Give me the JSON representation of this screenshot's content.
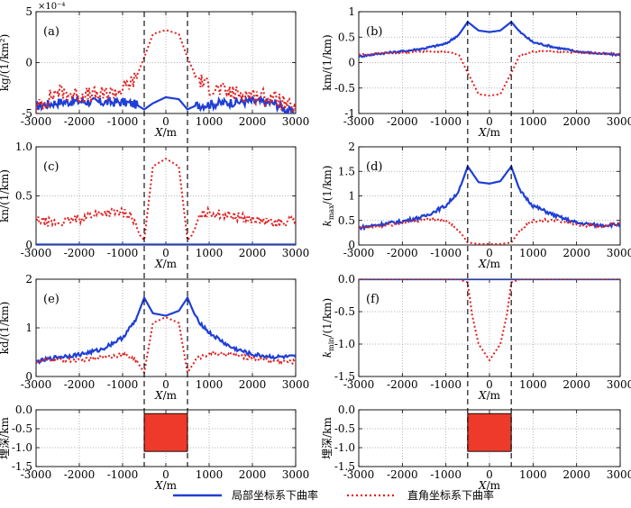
{
  "figure": {
    "x_range": [
      -3000,
      3000
    ],
    "x_ticks": [
      -3000,
      -2000,
      -1000,
      0,
      1000,
      2000,
      3000
    ],
    "xlabel": "X/m",
    "body_edges_x": [
      -500,
      500
    ],
    "legend": [
      {
        "label": "局部坐标系下曲率",
        "color": "#1f3fd6",
        "style": "solid"
      },
      {
        "label": "直角坐标系下曲率",
        "color": "#e02020",
        "style": "dotted"
      }
    ]
  },
  "chart_data": [
    {
      "id": "a",
      "panel_label": "(a)",
      "type": "line",
      "ylabel": "kg/(1/km²)",
      "scale_note": "×10⁻⁴",
      "ylim": [
        -5,
        5
      ],
      "yticks": [
        -5,
        0,
        5
      ],
      "ytick_labels": [
        "-5",
        "0",
        "5"
      ],
      "x": [
        -3000,
        -2500,
        -2000,
        -1500,
        -1000,
        -700,
        -500,
        -300,
        0,
        300,
        500,
        700,
        1000,
        1500,
        2000,
        2500,
        3000
      ],
      "series": [
        {
          "name": "局部坐标系下曲率",
          "values": [
            -4.3,
            -3.9,
            -3.8,
            -3.9,
            -3.9,
            -4.1,
            -4.6,
            -4.0,
            -3.4,
            -3.6,
            -4.6,
            -4.2,
            -4.1,
            -3.9,
            -3.8,
            -4.0,
            -5.1
          ]
        },
        {
          "name": "直角坐标系下曲率",
          "values": [
            -4.5,
            -2.8,
            -3.2,
            -3.2,
            -2.6,
            -1.6,
            0.5,
            2.8,
            3.2,
            2.8,
            0.5,
            -1.4,
            -2.4,
            -3.0,
            -3.2,
            -3.5,
            -4.7
          ]
        }
      ]
    },
    {
      "id": "b",
      "panel_label": "(b)",
      "type": "line",
      "ylabel": "km/(1/km)",
      "ylim": [
        -1,
        1
      ],
      "yticks": [
        -1,
        -0.5,
        0,
        0.5,
        1
      ],
      "ytick_labels": [
        "-1",
        "-0.5",
        "0",
        "0.5",
        "1"
      ],
      "x": [
        -3000,
        -2500,
        -2000,
        -1500,
        -1000,
        -700,
        -500,
        -250,
        0,
        250,
        500,
        700,
        1000,
        1500,
        2000,
        2500,
        3000
      ],
      "series": [
        {
          "name": "局部坐标系下曲率",
          "values": [
            0.12,
            0.18,
            0.22,
            0.28,
            0.37,
            0.55,
            0.8,
            0.63,
            0.6,
            0.63,
            0.8,
            0.6,
            0.4,
            0.3,
            0.22,
            0.18,
            0.15
          ]
        },
        {
          "name": "直角坐标系下曲率",
          "values": [
            0.15,
            0.18,
            0.2,
            0.22,
            0.22,
            0.15,
            -0.2,
            -0.62,
            -0.65,
            -0.62,
            -0.2,
            0.15,
            0.22,
            0.22,
            0.2,
            0.18,
            0.16
          ]
        }
      ]
    },
    {
      "id": "c",
      "panel_label": "(c)",
      "type": "line",
      "ylabel": "kn/(1/km)",
      "ylim": [
        0,
        1
      ],
      "yticks": [
        0,
        0.5,
        1
      ],
      "ytick_labels": [
        "0",
        "0.5",
        "1.0"
      ],
      "x": [
        -3000,
        -2500,
        -2000,
        -1500,
        -1000,
        -800,
        -600,
        -500,
        -300,
        0,
        300,
        500,
        600,
        800,
        1000,
        1500,
        2000,
        2500,
        3000
      ],
      "series": [
        {
          "name": "局部坐标系下曲率",
          "values": [
            0.005,
            0.005,
            0.005,
            0.005,
            0.005,
            0.005,
            0.005,
            0.005,
            0.005,
            0.005,
            0.005,
            0.005,
            0.005,
            0.005,
            0.005,
            0.005,
            0.005,
            0.005,
            0.005
          ]
        },
        {
          "name": "直角坐标系下曲率",
          "values": [
            0.25,
            0.22,
            0.27,
            0.33,
            0.33,
            0.3,
            0.1,
            0.05,
            0.8,
            0.88,
            0.8,
            0.05,
            0.1,
            0.3,
            0.33,
            0.3,
            0.26,
            0.22,
            0.25
          ]
        }
      ]
    },
    {
      "id": "d",
      "panel_label": "(d)",
      "type": "line",
      "ylabel": "k_max/(1/km)",
      "ylim": [
        0,
        2
      ],
      "yticks": [
        0,
        0.5,
        1,
        1.5,
        2
      ],
      "ytick_labels": [
        "0",
        "0.5",
        "1",
        "1.5",
        "2"
      ],
      "x": [
        -3000,
        -2500,
        -2000,
        -1500,
        -1000,
        -700,
        -500,
        -250,
        0,
        250,
        500,
        700,
        1000,
        1500,
        2000,
        2500,
        3000
      ],
      "series": [
        {
          "name": "局部坐标系下曲率",
          "values": [
            0.35,
            0.42,
            0.48,
            0.58,
            0.8,
            1.1,
            1.6,
            1.28,
            1.25,
            1.3,
            1.6,
            1.1,
            0.8,
            0.6,
            0.45,
            0.4,
            0.42
          ]
        },
        {
          "name": "直角坐标系下曲率",
          "values": [
            0.35,
            0.38,
            0.45,
            0.52,
            0.5,
            0.3,
            0.05,
            0.02,
            0.02,
            0.02,
            0.05,
            0.3,
            0.5,
            0.5,
            0.42,
            0.38,
            0.42
          ]
        }
      ]
    },
    {
      "id": "e",
      "panel_label": "(e)",
      "type": "line",
      "ylabel": "kd/(1/km)",
      "ylim": [
        0,
        2
      ],
      "yticks": [
        0,
        1,
        2
      ],
      "ytick_labels": [
        "0",
        "1",
        "2"
      ],
      "x": [
        -3000,
        -2500,
        -2000,
        -1500,
        -1000,
        -700,
        -500,
        -300,
        0,
        300,
        500,
        700,
        1000,
        1500,
        2000,
        2500,
        3000
      ],
      "series": [
        {
          "name": "局部坐标系下曲率",
          "values": [
            0.3,
            0.4,
            0.45,
            0.55,
            0.8,
            1.15,
            1.62,
            1.3,
            1.25,
            1.35,
            1.62,
            1.2,
            0.9,
            0.6,
            0.45,
            0.4,
            0.4
          ]
        },
        {
          "name": "直角坐标系下曲率",
          "values": [
            0.3,
            0.35,
            0.32,
            0.4,
            0.45,
            0.35,
            0.08,
            1.1,
            1.22,
            1.1,
            0.08,
            0.35,
            0.48,
            0.45,
            0.38,
            0.32,
            0.3
          ]
        }
      ]
    },
    {
      "id": "f",
      "panel_label": "(f)",
      "type": "line",
      "ylabel": "k_min/(1/km)",
      "ylim": [
        -1.5,
        0
      ],
      "yticks": [
        -1.5,
        -1,
        -0.5,
        0
      ],
      "ytick_labels": [
        "-1.5",
        "-1.0",
        "-0.5",
        "0.0"
      ],
      "x": [
        -3000,
        -2000,
        -1000,
        -700,
        -500,
        -400,
        -250,
        0,
        250,
        400,
        500,
        700,
        1000,
        2000,
        3000
      ],
      "series": [
        {
          "name": "局部坐标系下曲率",
          "values": [
            0,
            0,
            0,
            0,
            0,
            0,
            0,
            0,
            0,
            0,
            0,
            0,
            0,
            0,
            0
          ]
        },
        {
          "name": "直角坐标系下曲率",
          "values": [
            0,
            0,
            0,
            0,
            -0.05,
            -0.55,
            -1.0,
            -1.25,
            -1.0,
            -0.55,
            -0.05,
            0,
            0,
            0,
            0
          ]
        }
      ]
    }
  ],
  "bottom_panels": [
    {
      "ylabel": "埋深/km",
      "ylim": [
        -1.5,
        0
      ],
      "yticks": [
        -1.5,
        -1,
        -0.5,
        0
      ],
      "ytick_labels": [
        "-1.5",
        "-1.0",
        "-0.5",
        "0.0"
      ],
      "body": {
        "x_from": -500,
        "x_to": 500,
        "depth_top": -0.1,
        "depth_bottom": -1.1,
        "color": "#ee3a2a"
      }
    },
    {
      "ylabel": "埋深/km",
      "ylim": [
        -1.5,
        0
      ],
      "yticks": [
        -1.5,
        -1,
        -0.5,
        0
      ],
      "ytick_labels": [
        "-1.5",
        "-1.0",
        "-0.5",
        "0.0"
      ],
      "body": {
        "x_from": -500,
        "x_to": 500,
        "depth_top": -0.1,
        "depth_bottom": -1.1,
        "color": "#ee3a2a"
      }
    }
  ]
}
